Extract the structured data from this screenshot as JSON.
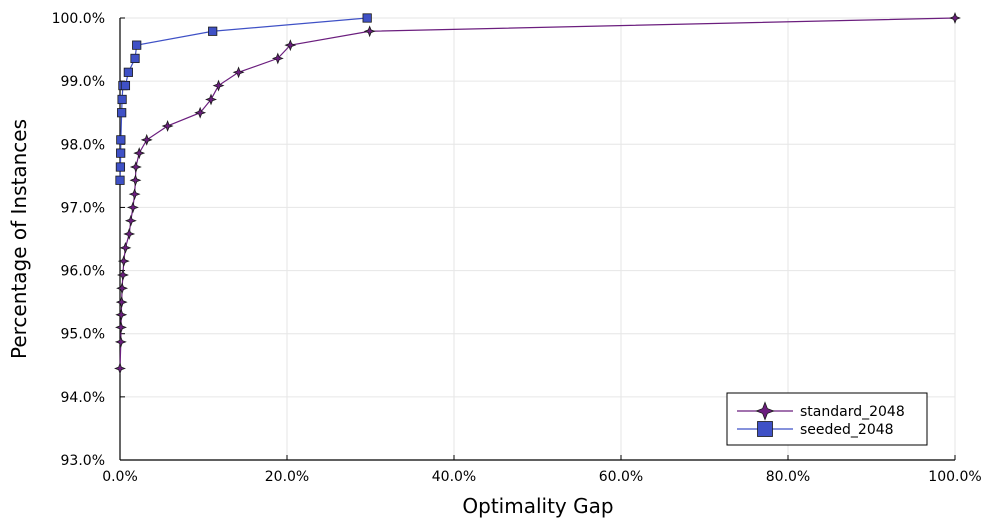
{
  "chart_data": {
    "type": "line",
    "title": "",
    "xlabel": "Optimality Gap",
    "ylabel": "Percentage of Instances",
    "xlim": [
      0,
      100
    ],
    "ylim": [
      93,
      100
    ],
    "x_ticks": [
      0,
      20,
      40,
      60,
      80,
      100
    ],
    "x_tick_labels": [
      "0.0%",
      "20.0%",
      "40.0%",
      "60.0%",
      "80.0%",
      "100.0%"
    ],
    "y_ticks": [
      93,
      94,
      95,
      96,
      97,
      98,
      99,
      100
    ],
    "y_tick_labels": [
      "93.0%",
      "94.0%",
      "95.0%",
      "96.0%",
      "97.0%",
      "98.0%",
      "99.0%",
      "100.0%"
    ],
    "grid": true,
    "legend_position": "bottom-right",
    "series": [
      {
        "name": "standard_2048",
        "color": "#6b1e7e",
        "marker": "star4",
        "points": [
          [
            0.0,
            94.45
          ],
          [
            0.1,
            94.87
          ],
          [
            0.12,
            95.1
          ],
          [
            0.15,
            95.3
          ],
          [
            0.2,
            95.5
          ],
          [
            0.25,
            95.72
          ],
          [
            0.35,
            95.93
          ],
          [
            0.45,
            96.15
          ],
          [
            0.65,
            96.36
          ],
          [
            1.1,
            96.58
          ],
          [
            1.3,
            96.79
          ],
          [
            1.55,
            97.0
          ],
          [
            1.75,
            97.21
          ],
          [
            1.85,
            97.43
          ],
          [
            1.9,
            97.64
          ],
          [
            2.3,
            97.86
          ],
          [
            3.2,
            98.07
          ],
          [
            5.7,
            98.29
          ],
          [
            9.6,
            98.5
          ],
          [
            10.9,
            98.71
          ],
          [
            11.8,
            98.93
          ],
          [
            14.2,
            99.14
          ],
          [
            18.9,
            99.36
          ],
          [
            20.4,
            99.57
          ],
          [
            29.9,
            99.79
          ],
          [
            100.0,
            100.0
          ]
        ]
      },
      {
        "name": "seeded_2048",
        "color": "#3f51c6",
        "marker": "square",
        "points": [
          [
            0.0,
            97.43
          ],
          [
            0.05,
            97.64
          ],
          [
            0.08,
            97.86
          ],
          [
            0.1,
            98.07
          ],
          [
            0.2,
            98.5
          ],
          [
            0.25,
            98.71
          ],
          [
            0.35,
            98.93
          ],
          [
            0.65,
            98.93
          ],
          [
            1.0,
            99.14
          ],
          [
            1.8,
            99.36
          ],
          [
            2.0,
            99.57
          ],
          [
            11.1,
            99.79
          ],
          [
            29.6,
            100.0
          ]
        ]
      }
    ]
  }
}
